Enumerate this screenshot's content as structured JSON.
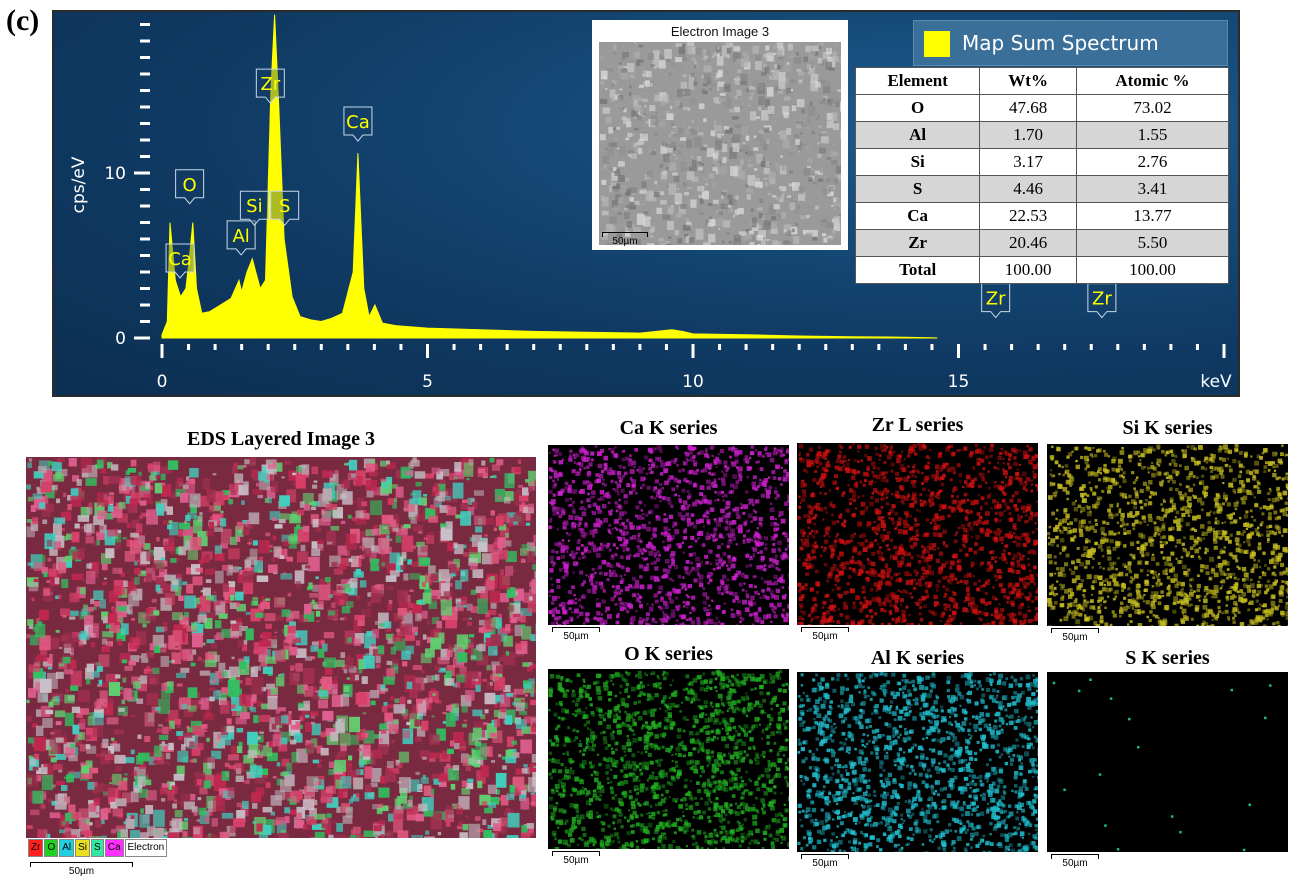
{
  "panel_label": "(c)",
  "chart_data": {
    "type": "area",
    "title": "",
    "xlabel": "keV",
    "ylabel": "cps/eV",
    "xlim": [
      0,
      20
    ],
    "ylim": [
      0,
      20
    ],
    "x_ticks": [
      0,
      5,
      10,
      15
    ],
    "y_ticks": [
      0,
      10
    ],
    "grid": false,
    "series": [
      {
        "name": "Map Sum Spectrum",
        "x": [
          0.0,
          0.1,
          0.15,
          0.25,
          0.35,
          0.45,
          0.52,
          0.58,
          0.65,
          0.75,
          0.9,
          1.1,
          1.3,
          1.45,
          1.5,
          1.6,
          1.7,
          1.75,
          1.85,
          1.95,
          2.05,
          2.12,
          2.2,
          2.3,
          2.45,
          2.6,
          2.8,
          3.0,
          3.2,
          3.4,
          3.6,
          3.69,
          3.8,
          3.9,
          4.01,
          4.15,
          4.4,
          5.0,
          6.0,
          7.0,
          8.0,
          9.0,
          9.6,
          9.8,
          10.0,
          11.0,
          12.0,
          13.0,
          14.0,
          14.5,
          14.6
        ],
        "values": [
          0.2,
          1.0,
          7.0,
          3.5,
          2.5,
          3.0,
          5.0,
          7.0,
          3.0,
          1.5,
          1.6,
          2.0,
          2.4,
          3.5,
          2.8,
          4.0,
          4.8,
          4.2,
          3.0,
          3.5,
          15.0,
          19.6,
          14.0,
          6.0,
          2.5,
          1.3,
          1.1,
          1.0,
          1.2,
          1.5,
          4.0,
          11.2,
          3.0,
          1.3,
          2.0,
          0.9,
          0.75,
          0.6,
          0.5,
          0.4,
          0.35,
          0.3,
          0.5,
          0.4,
          0.25,
          0.2,
          0.12,
          0.08,
          0.05,
          0.02,
          0.0
        ],
        "color": "#ffff00"
      }
    ],
    "peak_labels": [
      {
        "label": "Ca",
        "x": 0.34,
        "y": 4.0
      },
      {
        "label": "O",
        "x": 0.52,
        "y": 8.5
      },
      {
        "label": "Al",
        "x": 1.49,
        "y": 5.4
      },
      {
        "label": "Si",
        "x": 1.74,
        "y": 7.2
      },
      {
        "label": "S",
        "x": 2.31,
        "y": 7.2
      },
      {
        "label": "Zr",
        "x": 2.04,
        "y": 14.6
      },
      {
        "label": "Ca",
        "x": 3.69,
        "y": 12.3
      },
      {
        "label": "Zr",
        "x": 15.7,
        "y": 1.6
      },
      {
        "label": "Zr",
        "x": 17.7,
        "y": 1.6
      }
    ],
    "legend": {
      "text": "Map Sum Spectrum",
      "color": "#ffff00",
      "placement": "top-right"
    }
  },
  "electron_image": {
    "title": "Electron Image 3",
    "scale": "50µm"
  },
  "composition_table": {
    "headers": [
      "Element",
      "Wt%",
      "Atomic %"
    ],
    "rows": [
      [
        "O",
        "47.68",
        "73.02"
      ],
      [
        "Al",
        "1.70",
        "1.55"
      ],
      [
        "Si",
        "3.17",
        "2.76"
      ],
      [
        "S",
        "4.46",
        "3.41"
      ],
      [
        "Ca",
        "22.53",
        "13.77"
      ],
      [
        "Zr",
        "20.46",
        "5.50"
      ],
      [
        "Total",
        "100.00",
        "100.00"
      ]
    ]
  },
  "layered_image": {
    "title": "EDS Layered Image 3",
    "scale": "50µm",
    "legend_chips": [
      {
        "label": "Zr",
        "color": "#ff2020"
      },
      {
        "label": "O",
        "color": "#20d020"
      },
      {
        "label": "Al",
        "color": "#20d0e0"
      },
      {
        "label": "Si",
        "color": "#e8e020"
      },
      {
        "label": "S",
        "color": "#30e8a0"
      },
      {
        "label": "Ca",
        "color": "#ff30ff"
      },
      {
        "label": "Electron",
        "color": "#ffffff"
      }
    ]
  },
  "element_maps": [
    {
      "title": "Ca K series",
      "scale": "50µm",
      "color": "#d020d0"
    },
    {
      "title": "Zr L series",
      "scale": "50µm",
      "color": "#d01010"
    },
    {
      "title": "Si K series",
      "scale": "50µm",
      "color": "#c8c020"
    },
    {
      "title": "O K series",
      "scale": "50µm",
      "color": "#20b020"
    },
    {
      "title": "Al K series",
      "scale": "50µm",
      "color": "#20c0d0"
    },
    {
      "title": "S K series",
      "scale": "50µm",
      "color": "#20d090"
    }
  ]
}
